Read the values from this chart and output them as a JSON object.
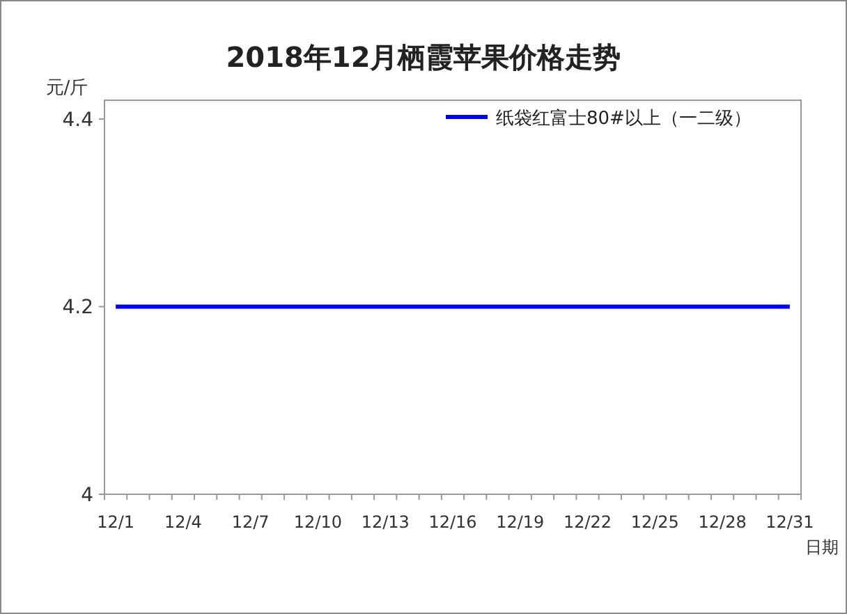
{
  "chart_data": {
    "type": "line",
    "title": "2018年12月栖霞苹果价格走势",
    "ylabel": "元/斤",
    "xlabel": "日期",
    "categories": [
      "12/1",
      null,
      null,
      "12/4",
      null,
      null,
      "12/7",
      null,
      null,
      "12/10",
      null,
      null,
      "12/13",
      null,
      null,
      "12/16",
      null,
      null,
      "12/19",
      null,
      null,
      "12/22",
      null,
      null,
      "12/25",
      null,
      null,
      "12/28",
      null,
      null,
      "12/31"
    ],
    "series": [
      {
        "name": "纸袋红富士80#以上（一二级）",
        "color": "#0000ff",
        "values": [
          4.2,
          4.2,
          4.2,
          4.2,
          4.2,
          4.2,
          4.2,
          4.2,
          4.2,
          4.2,
          4.2,
          4.2,
          4.2,
          4.2,
          4.2,
          4.2,
          4.2,
          4.2,
          4.2,
          4.2,
          4.2,
          4.2,
          4.2,
          4.2,
          4.2,
          4.2,
          4.2,
          4.2,
          4.2,
          4.2,
          4.2
        ]
      }
    ],
    "ylim": [
      4,
      4.42
    ],
    "yticks": [
      4,
      4.2,
      4.4
    ],
    "grid": false,
    "legend": "top right",
    "marker": "none",
    "line_style": "solid"
  }
}
